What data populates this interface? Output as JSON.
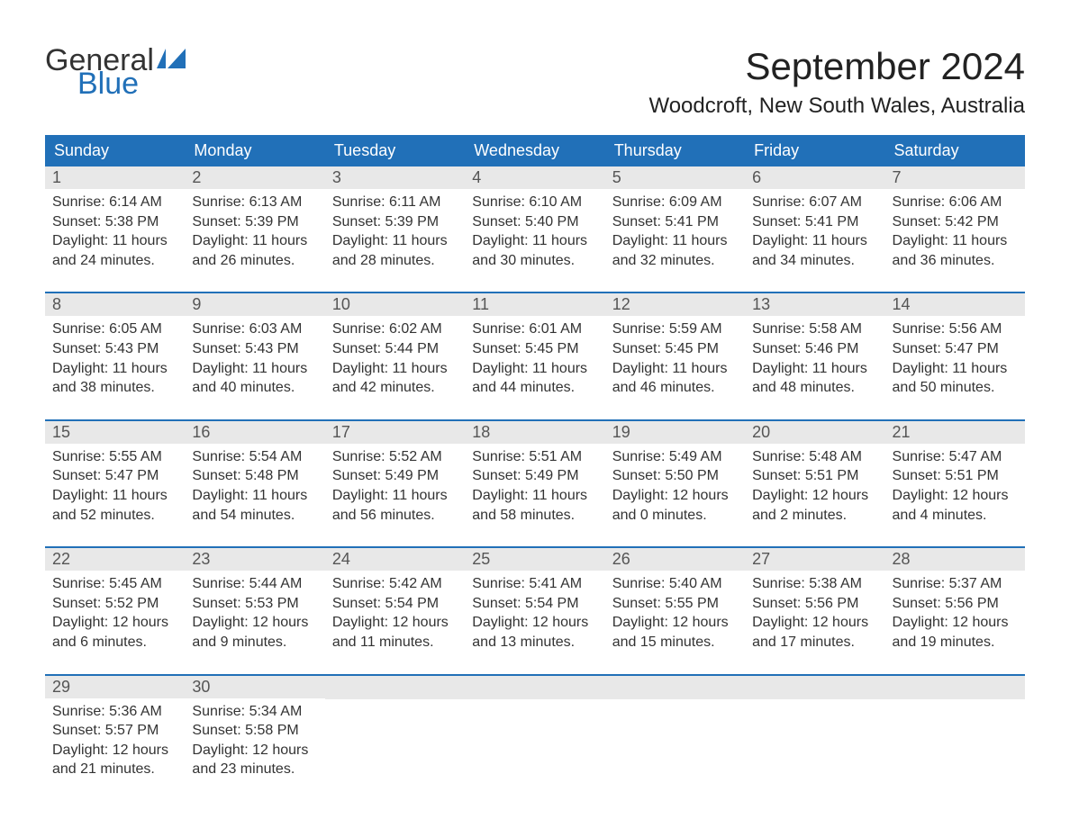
{
  "logo": {
    "text_general": "General",
    "text_blue": "Blue",
    "icon_color": "#2170b8"
  },
  "title": "September 2024",
  "location": "Woodcroft, New South Wales, Australia",
  "colors": {
    "header_bg": "#2170b8",
    "header_text": "#ffffff",
    "daynum_bg": "#e8e8e8",
    "daynum_text": "#555555",
    "body_text": "#333333",
    "divider": "#2170b8",
    "page_bg": "#ffffff"
  },
  "typography": {
    "title_fontsize": 42,
    "location_fontsize": 24,
    "dayheader_fontsize": 18,
    "daynum_fontsize": 18,
    "body_fontsize": 16,
    "logo_fontsize": 34
  },
  "day_headers": [
    "Sunday",
    "Monday",
    "Tuesday",
    "Wednesday",
    "Thursday",
    "Friday",
    "Saturday"
  ],
  "weeks": [
    [
      {
        "n": "1",
        "sunrise": "Sunrise: 6:14 AM",
        "sunset": "Sunset: 5:38 PM",
        "dl1": "Daylight: 11 hours",
        "dl2": "and 24 minutes."
      },
      {
        "n": "2",
        "sunrise": "Sunrise: 6:13 AM",
        "sunset": "Sunset: 5:39 PM",
        "dl1": "Daylight: 11 hours",
        "dl2": "and 26 minutes."
      },
      {
        "n": "3",
        "sunrise": "Sunrise: 6:11 AM",
        "sunset": "Sunset: 5:39 PM",
        "dl1": "Daylight: 11 hours",
        "dl2": "and 28 minutes."
      },
      {
        "n": "4",
        "sunrise": "Sunrise: 6:10 AM",
        "sunset": "Sunset: 5:40 PM",
        "dl1": "Daylight: 11 hours",
        "dl2": "and 30 minutes."
      },
      {
        "n": "5",
        "sunrise": "Sunrise: 6:09 AM",
        "sunset": "Sunset: 5:41 PM",
        "dl1": "Daylight: 11 hours",
        "dl2": "and 32 minutes."
      },
      {
        "n": "6",
        "sunrise": "Sunrise: 6:07 AM",
        "sunset": "Sunset: 5:41 PM",
        "dl1": "Daylight: 11 hours",
        "dl2": "and 34 minutes."
      },
      {
        "n": "7",
        "sunrise": "Sunrise: 6:06 AM",
        "sunset": "Sunset: 5:42 PM",
        "dl1": "Daylight: 11 hours",
        "dl2": "and 36 minutes."
      }
    ],
    [
      {
        "n": "8",
        "sunrise": "Sunrise: 6:05 AM",
        "sunset": "Sunset: 5:43 PM",
        "dl1": "Daylight: 11 hours",
        "dl2": "and 38 minutes."
      },
      {
        "n": "9",
        "sunrise": "Sunrise: 6:03 AM",
        "sunset": "Sunset: 5:43 PM",
        "dl1": "Daylight: 11 hours",
        "dl2": "and 40 minutes."
      },
      {
        "n": "10",
        "sunrise": "Sunrise: 6:02 AM",
        "sunset": "Sunset: 5:44 PM",
        "dl1": "Daylight: 11 hours",
        "dl2": "and 42 minutes."
      },
      {
        "n": "11",
        "sunrise": "Sunrise: 6:01 AM",
        "sunset": "Sunset: 5:45 PM",
        "dl1": "Daylight: 11 hours",
        "dl2": "and 44 minutes."
      },
      {
        "n": "12",
        "sunrise": "Sunrise: 5:59 AM",
        "sunset": "Sunset: 5:45 PM",
        "dl1": "Daylight: 11 hours",
        "dl2": "and 46 minutes."
      },
      {
        "n": "13",
        "sunrise": "Sunrise: 5:58 AM",
        "sunset": "Sunset: 5:46 PM",
        "dl1": "Daylight: 11 hours",
        "dl2": "and 48 minutes."
      },
      {
        "n": "14",
        "sunrise": "Sunrise: 5:56 AM",
        "sunset": "Sunset: 5:47 PM",
        "dl1": "Daylight: 11 hours",
        "dl2": "and 50 minutes."
      }
    ],
    [
      {
        "n": "15",
        "sunrise": "Sunrise: 5:55 AM",
        "sunset": "Sunset: 5:47 PM",
        "dl1": "Daylight: 11 hours",
        "dl2": "and 52 minutes."
      },
      {
        "n": "16",
        "sunrise": "Sunrise: 5:54 AM",
        "sunset": "Sunset: 5:48 PM",
        "dl1": "Daylight: 11 hours",
        "dl2": "and 54 minutes."
      },
      {
        "n": "17",
        "sunrise": "Sunrise: 5:52 AM",
        "sunset": "Sunset: 5:49 PM",
        "dl1": "Daylight: 11 hours",
        "dl2": "and 56 minutes."
      },
      {
        "n": "18",
        "sunrise": "Sunrise: 5:51 AM",
        "sunset": "Sunset: 5:49 PM",
        "dl1": "Daylight: 11 hours",
        "dl2": "and 58 minutes."
      },
      {
        "n": "19",
        "sunrise": "Sunrise: 5:49 AM",
        "sunset": "Sunset: 5:50 PM",
        "dl1": "Daylight: 12 hours",
        "dl2": "and 0 minutes."
      },
      {
        "n": "20",
        "sunrise": "Sunrise: 5:48 AM",
        "sunset": "Sunset: 5:51 PM",
        "dl1": "Daylight: 12 hours",
        "dl2": "and 2 minutes."
      },
      {
        "n": "21",
        "sunrise": "Sunrise: 5:47 AM",
        "sunset": "Sunset: 5:51 PM",
        "dl1": "Daylight: 12 hours",
        "dl2": "and 4 minutes."
      }
    ],
    [
      {
        "n": "22",
        "sunrise": "Sunrise: 5:45 AM",
        "sunset": "Sunset: 5:52 PM",
        "dl1": "Daylight: 12 hours",
        "dl2": "and 6 minutes."
      },
      {
        "n": "23",
        "sunrise": "Sunrise: 5:44 AM",
        "sunset": "Sunset: 5:53 PM",
        "dl1": "Daylight: 12 hours",
        "dl2": "and 9 minutes."
      },
      {
        "n": "24",
        "sunrise": "Sunrise: 5:42 AM",
        "sunset": "Sunset: 5:54 PM",
        "dl1": "Daylight: 12 hours",
        "dl2": "and 11 minutes."
      },
      {
        "n": "25",
        "sunrise": "Sunrise: 5:41 AM",
        "sunset": "Sunset: 5:54 PM",
        "dl1": "Daylight: 12 hours",
        "dl2": "and 13 minutes."
      },
      {
        "n": "26",
        "sunrise": "Sunrise: 5:40 AM",
        "sunset": "Sunset: 5:55 PM",
        "dl1": "Daylight: 12 hours",
        "dl2": "and 15 minutes."
      },
      {
        "n": "27",
        "sunrise": "Sunrise: 5:38 AM",
        "sunset": "Sunset: 5:56 PM",
        "dl1": "Daylight: 12 hours",
        "dl2": "and 17 minutes."
      },
      {
        "n": "28",
        "sunrise": "Sunrise: 5:37 AM",
        "sunset": "Sunset: 5:56 PM",
        "dl1": "Daylight: 12 hours",
        "dl2": "and 19 minutes."
      }
    ],
    [
      {
        "n": "29",
        "sunrise": "Sunrise: 5:36 AM",
        "sunset": "Sunset: 5:57 PM",
        "dl1": "Daylight: 12 hours",
        "dl2": "and 21 minutes."
      },
      {
        "n": "30",
        "sunrise": "Sunrise: 5:34 AM",
        "sunset": "Sunset: 5:58 PM",
        "dl1": "Daylight: 12 hours",
        "dl2": "and 23 minutes."
      },
      null,
      null,
      null,
      null,
      null
    ]
  ]
}
